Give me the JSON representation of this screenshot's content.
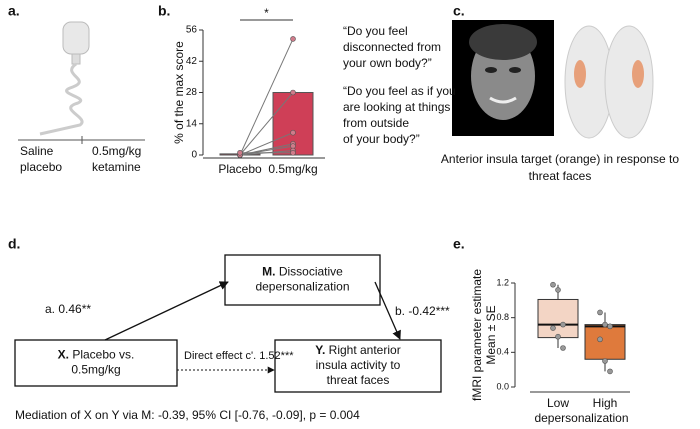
{
  "panel_a": {
    "label": "a.",
    "groups": [
      [
        "Saline",
        "placebo"
      ],
      [
        "0.5mg/kg",
        "ketamine"
      ]
    ]
  },
  "chart_data": [
    {
      "type": "bar",
      "panel_label": "b.",
      "ylabel": "% of the max score",
      "categories": [
        "Placebo",
        "0.5mg/kg"
      ],
      "values": [
        0.5,
        28
      ],
      "color": "#cf3f57",
      "ylim": [
        0,
        56
      ],
      "yticks": [
        0,
        14,
        28,
        42,
        56
      ],
      "paired_points": {
        "name": "subjects",
        "color": "#777777",
        "values": [
          [
            0,
            52
          ],
          [
            0,
            28
          ],
          [
            0,
            10
          ],
          [
            0,
            5
          ],
          [
            0,
            4
          ],
          [
            0,
            2
          ],
          [
            1,
            1
          ]
        ]
      },
      "annotation": "*",
      "quotes": [
        [
          "“Do you feel",
          "disconnected from",
          "your own body?”"
        ],
        [
          "“Do you feel as if you",
          "are looking at things",
          "from outside",
          "of your body?”"
        ]
      ]
    },
    {
      "type": "box",
      "panel_label": "e.",
      "ylabel": [
        "fMRI parameter estimate",
        "Mean ± SE"
      ],
      "xlabel": "depersonalization",
      "categories": [
        "Low",
        "High"
      ],
      "ylim": [
        0,
        1.2
      ],
      "yticks": [
        {
          "value": 0,
          "label": "0.0"
        },
        {
          "value": 0.4,
          "label": "0.4"
        },
        {
          "value": 0.8,
          "label": "0.8"
        },
        {
          "value": 1.2,
          "label": "1.2"
        }
      ],
      "series": [
        {
          "name": "Low",
          "color": "#f3d5c5",
          "whisker_low": 0.45,
          "q1": 0.57,
          "median": 0.72,
          "q3": 1.01,
          "whisker_high": 1.18,
          "points": [
            1.18,
            1.12,
            0.72,
            0.68,
            0.58,
            0.45
          ]
        },
        {
          "name": "High",
          "color": "#df7a3c",
          "whisker_low": 0.18,
          "q1": 0.32,
          "median": 0.7,
          "q3": 0.72,
          "whisker_high": 0.86,
          "points": [
            0.86,
            0.72,
            0.7,
            0.55,
            0.3,
            0.18
          ]
        }
      ]
    }
  ],
  "panel_c": {
    "label": "c.",
    "caption": [
      "Anterior insula target (orange) in response to",
      "threat faces"
    ]
  },
  "panel_d": {
    "label": "d.",
    "nodes": [
      {
        "bold": "M.",
        "lines": [
          "Dissociative",
          "depersonalization"
        ]
      },
      {
        "bold": "X.",
        "lines": [
          "Placebo vs.",
          "0.5mg/kg"
        ]
      },
      {
        "bold": "Y.",
        "lines": [
          "Right anterior",
          "insula activity to",
          "threat faces"
        ]
      }
    ],
    "paths": {
      "a": "a. 0.46**",
      "b": "b. -0.42***",
      "c": "Direct effect c'. 1.52***"
    },
    "footer": "Mediation of X on Y via M: -0.39, 95% CI [-0.76, -0.09], p = 0.004"
  }
}
